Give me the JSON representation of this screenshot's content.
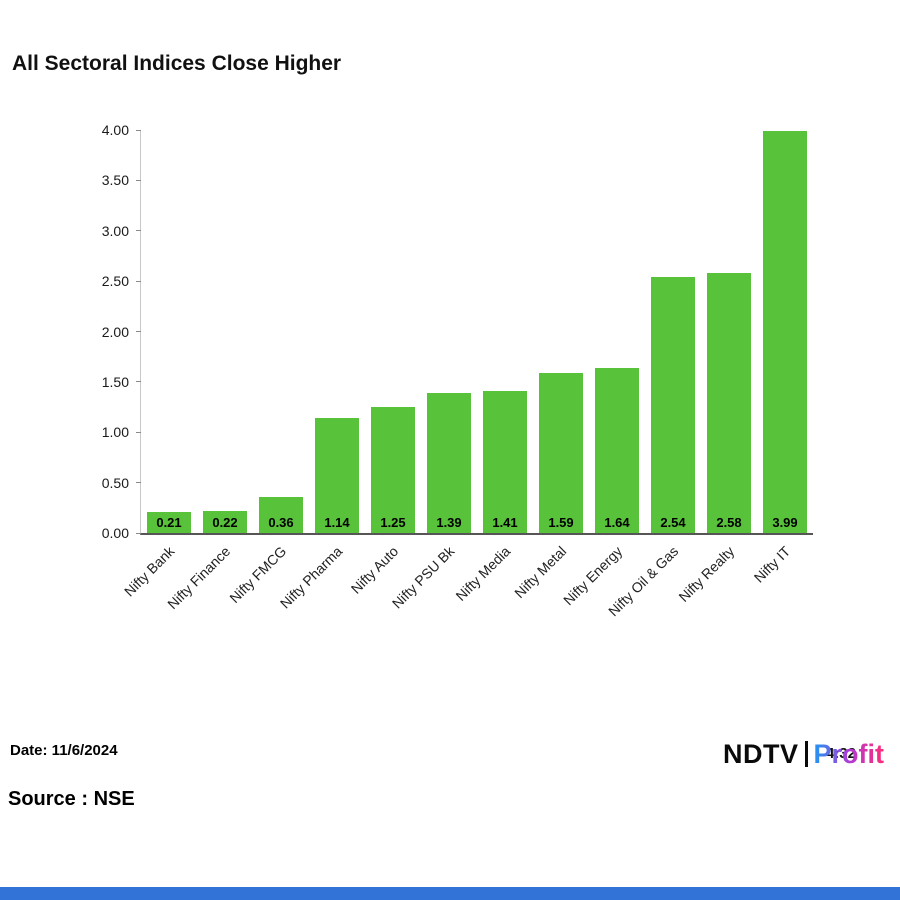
{
  "chart_data": {
    "type": "bar",
    "title": "All Sectoral Indices Close Higher",
    "categories": [
      "Nifty Bank",
      "Nifty Finance",
      "Nifty FMCG",
      "Nifty Pharma",
      "Nifty Auto",
      "Nifty PSU Bk",
      "Nifty Media",
      "Nifty Metal",
      "Nifty Energy",
      "Nifty Oil & Gas",
      "Nifty Realty",
      "Nifty IT"
    ],
    "values": [
      0.21,
      0.22,
      0.36,
      1.14,
      1.25,
      1.39,
      1.41,
      1.59,
      1.64,
      2.54,
      2.58,
      3.99
    ],
    "xlabel": "",
    "ylabel": "",
    "ylim": [
      0,
      4
    ],
    "ytick_step": 0.5,
    "grid": false,
    "legend": "none",
    "value_labels": true,
    "bar_color": "#57c23a"
  },
  "footer": {
    "date": "Date: 11/6/2024",
    "source": "Source : NSE"
  },
  "logo": {
    "ndtv": "NDTV",
    "profit": "Profit",
    "overlay": "4:32",
    "profit_gradient": [
      "#2196f3",
      "#b03ad6",
      "#ff2d78"
    ]
  },
  "bottom_bar_color": "#3273d8"
}
